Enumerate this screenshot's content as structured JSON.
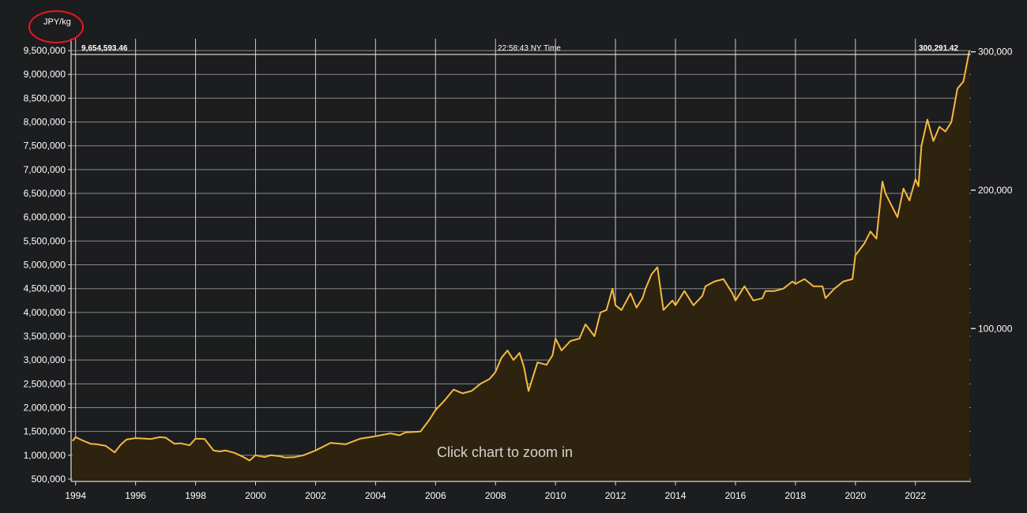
{
  "header": {
    "unit_label": "JPY/kg",
    "left_value": "9,654,593.46",
    "center_time": "22:58:43 NY Time",
    "right_value": "300,291.42"
  },
  "overlay": {
    "zoom_hint": "Click chart to zoom in"
  },
  "colors": {
    "line": "#f5b942",
    "fill": "#2e230e",
    "grid": "#8a8a8a",
    "background": "#1c1d1f",
    "annotation": "#e8191e"
  },
  "chart_data": {
    "type": "area",
    "xlim": [
      1993.85,
      2023.85
    ],
    "ylim": [
      450000,
      9750000
    ],
    "right_ylim": [
      -10500,
      309500
    ],
    "x_ticks": [
      1994,
      1996,
      1998,
      2000,
      2002,
      2004,
      2006,
      2008,
      2010,
      2012,
      2014,
      2016,
      2018,
      2020,
      2022
    ],
    "x_tick_labels": [
      "1994",
      "1996",
      "1998",
      "2000",
      "2002",
      "2004",
      "2006",
      "2008",
      "2010",
      "2012",
      "2014",
      "2016",
      "2018",
      "2020",
      "2022"
    ],
    "y_ticks": [
      500000,
      1000000,
      1500000,
      2000000,
      2500000,
      3000000,
      3500000,
      4000000,
      4500000,
      5000000,
      5500000,
      6000000,
      6500000,
      7000000,
      7500000,
      8000000,
      8500000,
      9000000,
      9500000
    ],
    "y_tick_labels": [
      "500,000",
      "1,000,000",
      "1,500,000",
      "2,000,000",
      "2,500,000",
      "3,000,000",
      "3,500,000",
      "4,000,000",
      "4,500,000",
      "5,000,000",
      "5,500,000",
      "6,000,000",
      "6,500,000",
      "7,000,000",
      "7,500,000",
      "8,000,000",
      "8,500,000",
      "9,000,000",
      "9,500,000"
    ],
    "right_y_ticks": [
      100000,
      200000,
      300000
    ],
    "right_y_tick_labels": [
      "100,000",
      "200,000",
      "300,000"
    ],
    "grid": true,
    "series": [
      {
        "x": [
          1993.9,
          1994.0,
          1994.2,
          1994.5,
          1994.7,
          1995.0,
          1995.3,
          1995.5,
          1995.7,
          1996.0,
          1996.3,
          1996.5,
          1996.8,
          1997.0,
          1997.3,
          1997.5,
          1997.8,
          1998.0,
          1998.3,
          1998.6,
          1998.8,
          1999.0,
          1999.3,
          1999.6,
          1999.8,
          2000.0,
          2000.3,
          2000.5,
          2000.8,
          2001.0,
          2001.3,
          2001.6,
          2002.0,
          2002.5,
          2003.0,
          2003.5,
          2004.0,
          2004.5,
          2004.8,
          2005.0,
          2005.5,
          2005.8,
          2006.0,
          2006.3,
          2006.6,
          2006.9,
          2007.2,
          2007.5,
          2007.8,
          2008.0,
          2008.2,
          2008.4,
          2008.6,
          2008.8,
          2008.95,
          2009.1,
          2009.4,
          2009.7,
          2009.9,
          2010.0,
          2010.2,
          2010.5,
          2010.8,
          2011.0,
          2011.3,
          2011.5,
          2011.7,
          2011.9,
          2012.0,
          2012.2,
          2012.5,
          2012.7,
          2012.9,
          2013.0,
          2013.2,
          2013.4,
          2013.6,
          2013.9,
          2014.0,
          2014.3,
          2014.6,
          2014.9,
          2015.0,
          2015.3,
          2015.6,
          2015.9,
          2016.0,
          2016.3,
          2016.6,
          2016.9,
          2017.0,
          2017.3,
          2017.6,
          2017.9,
          2018.0,
          2018.3,
          2018.6,
          2018.9,
          2019.0,
          2019.3,
          2019.6,
          2019.9,
          2020.0,
          2020.3,
          2020.5,
          2020.7,
          2020.9,
          2021.0,
          2021.2,
          2021.4,
          2021.6,
          2021.8,
          2022.0,
          2022.1,
          2022.2,
          2022.4,
          2022.6,
          2022.8,
          2023.0,
          2023.2,
          2023.4,
          2023.6,
          2023.8
        ],
        "values": [
          1300000,
          1380000,
          1320000,
          1240000,
          1230000,
          1200000,
          1060000,
          1220000,
          1330000,
          1360000,
          1350000,
          1340000,
          1380000,
          1370000,
          1240000,
          1250000,
          1210000,
          1350000,
          1340000,
          1100000,
          1080000,
          1100000,
          1050000,
          960000,
          890000,
          1000000,
          960000,
          1000000,
          980000,
          950000,
          960000,
          1000000,
          1100000,
          1260000,
          1230000,
          1350000,
          1400000,
          1460000,
          1420000,
          1480000,
          1500000,
          1750000,
          1950000,
          2150000,
          2380000,
          2300000,
          2350000,
          2500000,
          2600000,
          2750000,
          3050000,
          3200000,
          3000000,
          3150000,
          2850000,
          2350000,
          2950000,
          2900000,
          3100000,
          3450000,
          3200000,
          3400000,
          3450000,
          3750000,
          3500000,
          4000000,
          4050000,
          4500000,
          4150000,
          4050000,
          4400000,
          4100000,
          4300000,
          4500000,
          4800000,
          4950000,
          4050000,
          4250000,
          4150000,
          4450000,
          4150000,
          4350000,
          4550000,
          4650000,
          4700000,
          4400000,
          4250000,
          4550000,
          4250000,
          4300000,
          4450000,
          4450000,
          4500000,
          4650000,
          4600000,
          4700000,
          4550000,
          4550000,
          4300000,
          4500000,
          4650000,
          4700000,
          5200000,
          5450000,
          5700000,
          5550000,
          6750000,
          6500000,
          6250000,
          6000000,
          6600000,
          6350000,
          6800000,
          6650000,
          7500000,
          8050000,
          7600000,
          7900000,
          7800000,
          8000000,
          8700000,
          8850000,
          9500000
        ]
      }
    ]
  }
}
